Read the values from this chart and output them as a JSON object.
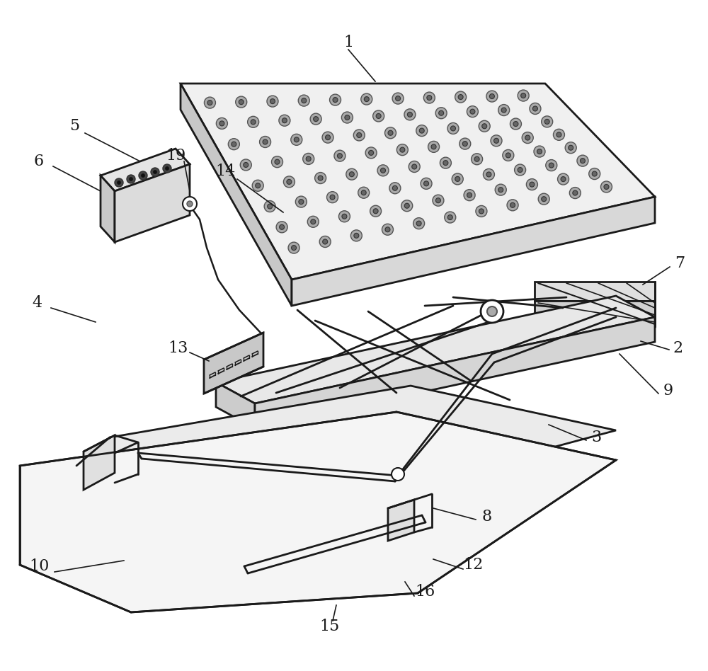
{
  "bg_color": "#ffffff",
  "line_color": "#1a1a1a",
  "line_width": 1.5,
  "label_fontsize": 16,
  "label_color": "#1a1a1a"
}
